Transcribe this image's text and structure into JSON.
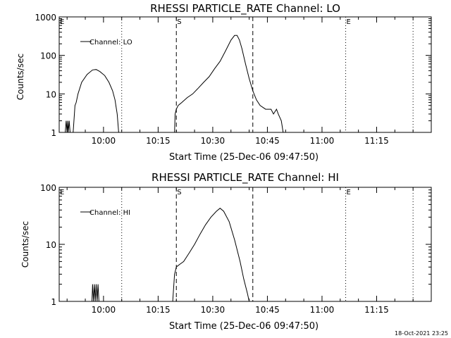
{
  "chart_data": [
    {
      "type": "line",
      "title": "RHESSI PARTICLE_RATE Channel: LO",
      "xlabel": "Start Time (25-Dec-06 09:47:50)",
      "ylabel": "Counts/sec",
      "yscale": "log",
      "ylim": [
        1,
        1000
      ],
      "xlim": [
        "09:47:50",
        "11:30:00"
      ],
      "x_ticks": [
        "10:00",
        "10:15",
        "10:30",
        "10:45",
        "11:00",
        "11:15"
      ],
      "y_ticks": [
        "1",
        "10",
        "100",
        "1000"
      ],
      "legend": "top-left",
      "series": [
        {
          "name": "Channel: LO",
          "points": [
            [
              "09:49:30",
              1
            ],
            [
              "09:49:45",
              2
            ],
            [
              "09:50:00",
              1
            ],
            [
              "09:50:10",
              2
            ],
            [
              "09:50:20",
              1
            ],
            [
              "09:50:35",
              2
            ],
            [
              "09:50:50",
              1
            ],
            [
              "09:51:40",
              1
            ],
            [
              "09:52:10",
              5
            ],
            [
              "09:52:30",
              6
            ],
            [
              "09:53:00",
              10
            ],
            [
              "09:54:00",
              20
            ],
            [
              "09:55:30",
              32
            ],
            [
              "09:57:00",
              42
            ],
            [
              "09:58:00",
              43
            ],
            [
              "09:59:00",
              38
            ],
            [
              "10:00:20",
              30
            ],
            [
              "10:01:30",
              20
            ],
            [
              "10:02:30",
              12
            ],
            [
              "10:03:10",
              7
            ],
            [
              "10:03:45",
              3
            ],
            [
              "10:04:10",
              1
            ],
            [
              "10:19:30",
              1
            ],
            [
              "10:19:40",
              3
            ],
            [
              "10:20:00",
              4
            ],
            [
              "10:20:30",
              5
            ],
            [
              "10:21:30",
              6
            ],
            [
              "10:23:00",
              8
            ],
            [
              "10:24:30",
              10
            ],
            [
              "10:26:00",
              14
            ],
            [
              "10:27:30",
              20
            ],
            [
              "10:29:00",
              28
            ],
            [
              "10:30:30",
              45
            ],
            [
              "10:32:00",
              70
            ],
            [
              "10:33:30",
              130
            ],
            [
              "10:35:00",
              250
            ],
            [
              "10:36:00",
              330
            ],
            [
              "10:36:40",
              330
            ],
            [
              "10:37:20",
              250
            ],
            [
              "10:38:00",
              150
            ],
            [
              "10:39:00",
              60
            ],
            [
              "10:40:00",
              25
            ],
            [
              "10:41:00",
              12
            ],
            [
              "10:42:00",
              7
            ],
            [
              "10:43:00",
              5
            ],
            [
              "10:44:30",
              4
            ],
            [
              "10:46:00",
              4
            ],
            [
              "10:46:40",
              3
            ],
            [
              "10:47:30",
              4
            ],
            [
              "10:48:00",
              3
            ],
            [
              "10:48:50",
              2
            ],
            [
              "10:49:20",
              1
            ]
          ]
        }
      ],
      "markers": [
        {
          "type": "dotted",
          "x": "10:05:00"
        },
        {
          "type": "dashed",
          "x": "10:20:00",
          "label": "S"
        },
        {
          "type": "dashed",
          "x": "10:41:00"
        },
        {
          "type": "dotted",
          "x": "11:06:30",
          "label": "E"
        },
        {
          "type": "dotted",
          "x": "11:25:00"
        }
      ],
      "corner_label": "E"
    },
    {
      "type": "line",
      "title": "RHESSI PARTICLE_RATE Channel: HI",
      "xlabel": "Start Time (25-Dec-06 09:47:50)",
      "ylabel": "Counts/sec",
      "yscale": "log",
      "ylim": [
        1,
        100
      ],
      "xlim": [
        "09:47:50",
        "11:30:00"
      ],
      "x_ticks": [
        "10:00",
        "10:15",
        "10:30",
        "10:45",
        "11:00",
        "11:15"
      ],
      "y_ticks": [
        "1",
        "10",
        "100"
      ],
      "legend": "top-left",
      "series": [
        {
          "name": "Channel: HI",
          "points": [
            [
              "09:56:50",
              1
            ],
            [
              "09:57:00",
              2
            ],
            [
              "09:57:15",
              1
            ],
            [
              "09:57:30",
              2
            ],
            [
              "09:57:45",
              1
            ],
            [
              "09:58:00",
              2
            ],
            [
              "09:58:15",
              1
            ],
            [
              "09:58:30",
              2
            ],
            [
              "09:58:45",
              1
            ],
            [
              "10:19:00",
              1
            ],
            [
              "10:19:30",
              3
            ],
            [
              "10:20:00",
              4
            ],
            [
              "10:21:00",
              4.5
            ],
            [
              "10:22:00",
              5
            ],
            [
              "10:23:30",
              7
            ],
            [
              "10:25:00",
              10
            ],
            [
              "10:26:30",
              15
            ],
            [
              "10:28:00",
              22
            ],
            [
              "10:29:30",
              30
            ],
            [
              "10:31:00",
              38
            ],
            [
              "10:32:00",
              43
            ],
            [
              "10:33:00",
              38
            ],
            [
              "10:34:30",
              25
            ],
            [
              "10:36:00",
              12
            ],
            [
              "10:37:30",
              5
            ],
            [
              "10:38:30",
              2.5
            ],
            [
              "10:39:30",
              1.4
            ],
            [
              "10:40:00",
              1
            ]
          ]
        }
      ],
      "markers": [
        {
          "type": "dotted",
          "x": "10:05:00"
        },
        {
          "type": "dashed",
          "x": "10:20:00",
          "label": "S"
        },
        {
          "type": "dashed",
          "x": "10:41:00"
        },
        {
          "type": "dotted",
          "x": "11:06:30",
          "label": "E"
        },
        {
          "type": "dotted",
          "x": "11:25:00"
        }
      ],
      "corner_label": "E"
    }
  ],
  "footer": {
    "timestamp": "18-Oct-2021 23:25"
  }
}
